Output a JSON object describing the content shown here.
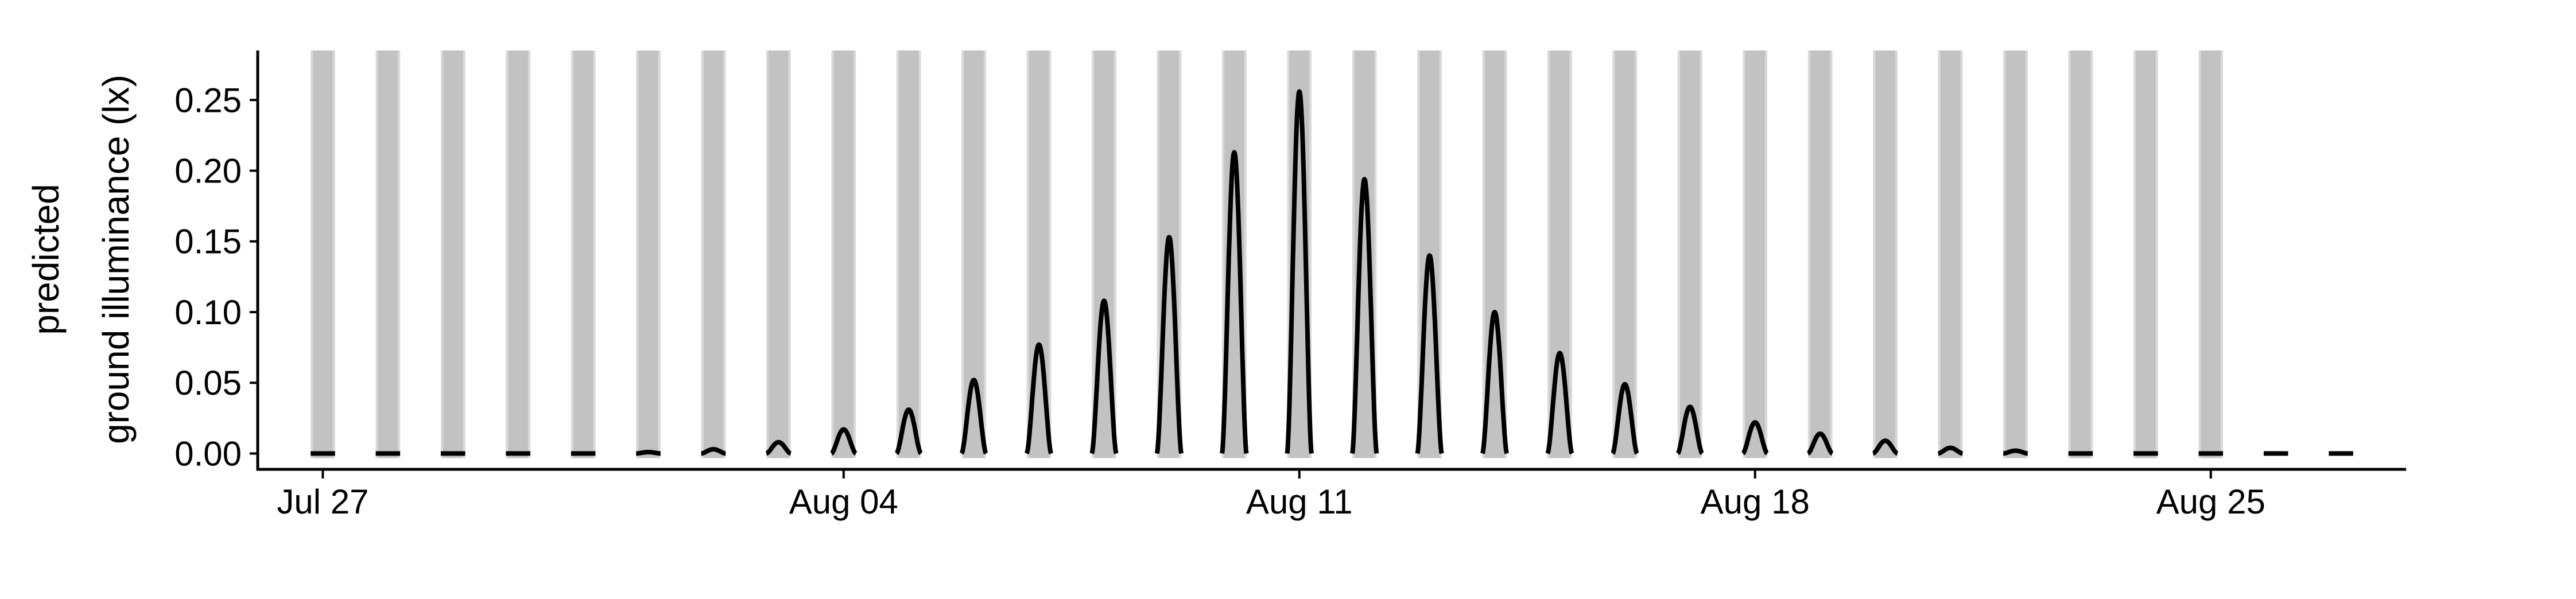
{
  "chart_data": {
    "type": "line",
    "title": "",
    "xlabel": "",
    "ylabel_lines": [
      "predicted",
      "ground illuminance (lx)"
    ],
    "x_range": [
      "2018-07-26",
      "2018-08-28"
    ],
    "ylim": [
      -0.012,
      0.285
    ],
    "x_ticks": [
      {
        "date": "2018-07-27",
        "label": "Jul 27"
      },
      {
        "date": "2018-08-04",
        "label": "Aug 04"
      },
      {
        "date": "2018-08-11",
        "label": "Aug 11"
      },
      {
        "date": "2018-08-18",
        "label": "Aug 18"
      },
      {
        "date": "2018-08-25",
        "label": "Aug 25"
      }
    ],
    "y_ticks": [
      {
        "value": 0.0,
        "label": "0.00"
      },
      {
        "value": 0.05,
        "label": "0.05"
      },
      {
        "value": 0.1,
        "label": "0.10"
      },
      {
        "value": 0.15,
        "label": "0.15"
      },
      {
        "value": 0.2,
        "label": "0.20"
      },
      {
        "value": 0.25,
        "label": "0.25"
      }
    ],
    "grid": false,
    "legend": "none",
    "night_bands": {
      "color": "#c2c2c2",
      "first_night": "2018-07-26",
      "count": 30,
      "start_hour": 19.5,
      "end_hour": 4.5
    },
    "series": [
      {
        "color": "#000000",
        "nightly_peaks": [
          {
            "night": "2018-07-26",
            "peak": 0.0
          },
          {
            "night": "2018-07-27",
            "peak": 0.0
          },
          {
            "night": "2018-07-28",
            "peak": 0.0
          },
          {
            "night": "2018-07-29",
            "peak": 0.0
          },
          {
            "night": "2018-07-30",
            "peak": 0.0
          },
          {
            "night": "2018-07-31",
            "peak": 0.001
          },
          {
            "night": "2018-08-01",
            "peak": 0.003
          },
          {
            "night": "2018-08-02",
            "peak": 0.008
          },
          {
            "night": "2018-08-03",
            "peak": 0.017
          },
          {
            "night": "2018-08-04",
            "peak": 0.031
          },
          {
            "night": "2018-08-05",
            "peak": 0.052
          },
          {
            "night": "2018-08-06",
            "peak": 0.077
          },
          {
            "night": "2018-08-07",
            "peak": 0.108
          },
          {
            "night": "2018-08-08",
            "peak": 0.153
          },
          {
            "night": "2018-08-09",
            "peak": 0.213
          },
          {
            "night": "2018-08-10",
            "peak": 0.256
          },
          {
            "night": "2018-08-11",
            "peak": 0.194
          },
          {
            "night": "2018-08-12",
            "peak": 0.14
          },
          {
            "night": "2018-08-13",
            "peak": 0.1
          },
          {
            "night": "2018-08-14",
            "peak": 0.071
          },
          {
            "night": "2018-08-15",
            "peak": 0.049
          },
          {
            "night": "2018-08-16",
            "peak": 0.033
          },
          {
            "night": "2018-08-17",
            "peak": 0.022
          },
          {
            "night": "2018-08-18",
            "peak": 0.014
          },
          {
            "night": "2018-08-19",
            "peak": 0.009
          },
          {
            "night": "2018-08-20",
            "peak": 0.004
          },
          {
            "night": "2018-08-21",
            "peak": 0.002
          },
          {
            "night": "2018-08-22",
            "peak": 0.0
          },
          {
            "night": "2018-08-23",
            "peak": 0.0
          },
          {
            "night": "2018-08-24",
            "peak": 0.0
          },
          {
            "night": "2018-08-25",
            "peak": 0.0
          },
          {
            "night": "2018-08-26",
            "peak": 0.0
          }
        ]
      }
    ]
  }
}
